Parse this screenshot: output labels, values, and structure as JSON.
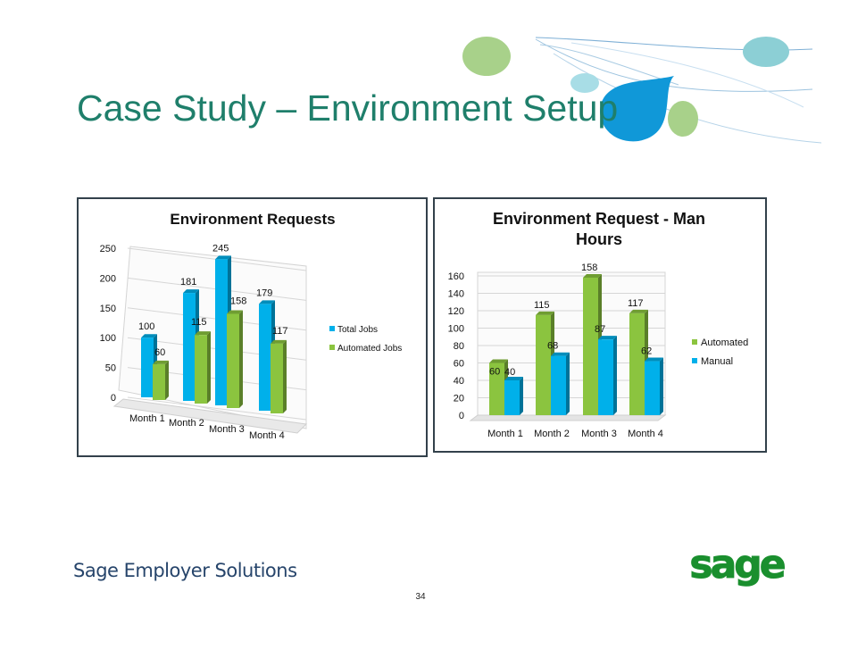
{
  "slide": {
    "title": "Case Study – Environment Setup",
    "footer_brand": "Sage Employer Solutions",
    "page_number": "34",
    "logo_text": "sage"
  },
  "colors": {
    "title": "#1f7f6b",
    "brand_green": "#1a8f2e",
    "blue": "#00b0ea",
    "green": "#8bc43f",
    "frame": "#33414b"
  },
  "chart_data": [
    {
      "type": "bar",
      "style": "3d-clustered-column",
      "title": "Environment Requests",
      "categories": [
        "Month 1",
        "Month 2",
        "Month 3",
        "Month 4"
      ],
      "series": [
        {
          "name": "Total Jobs",
          "color": "#00b0ea",
          "values": [
            100,
            181,
            245,
            179
          ]
        },
        {
          "name": "Automated Jobs",
          "color": "#8bc43f",
          "values": [
            60,
            115,
            158,
            117
          ]
        }
      ],
      "yticks": [
        "0",
        "50",
        "100",
        "150",
        "200",
        "250"
      ],
      "ylim": [
        0,
        250
      ],
      "grid": true,
      "legend": "right"
    },
    {
      "type": "bar",
      "style": "3d-clustered-column",
      "title": "Environment Request - Man Hours",
      "categories": [
        "Month 1",
        "Month 2",
        "Month 3",
        "Month 4"
      ],
      "series": [
        {
          "name": "Automated",
          "color": "#8bc43f",
          "values": [
            60,
            115,
            158,
            117
          ]
        },
        {
          "name": "Manual",
          "color": "#00b0ea",
          "values": [
            40,
            68,
            87,
            62
          ]
        }
      ],
      "yticks": [
        "0",
        "20",
        "40",
        "60",
        "80",
        "100",
        "120",
        "140",
        "160"
      ],
      "ylim": [
        0,
        160
      ],
      "grid": true,
      "legend": "right"
    }
  ]
}
